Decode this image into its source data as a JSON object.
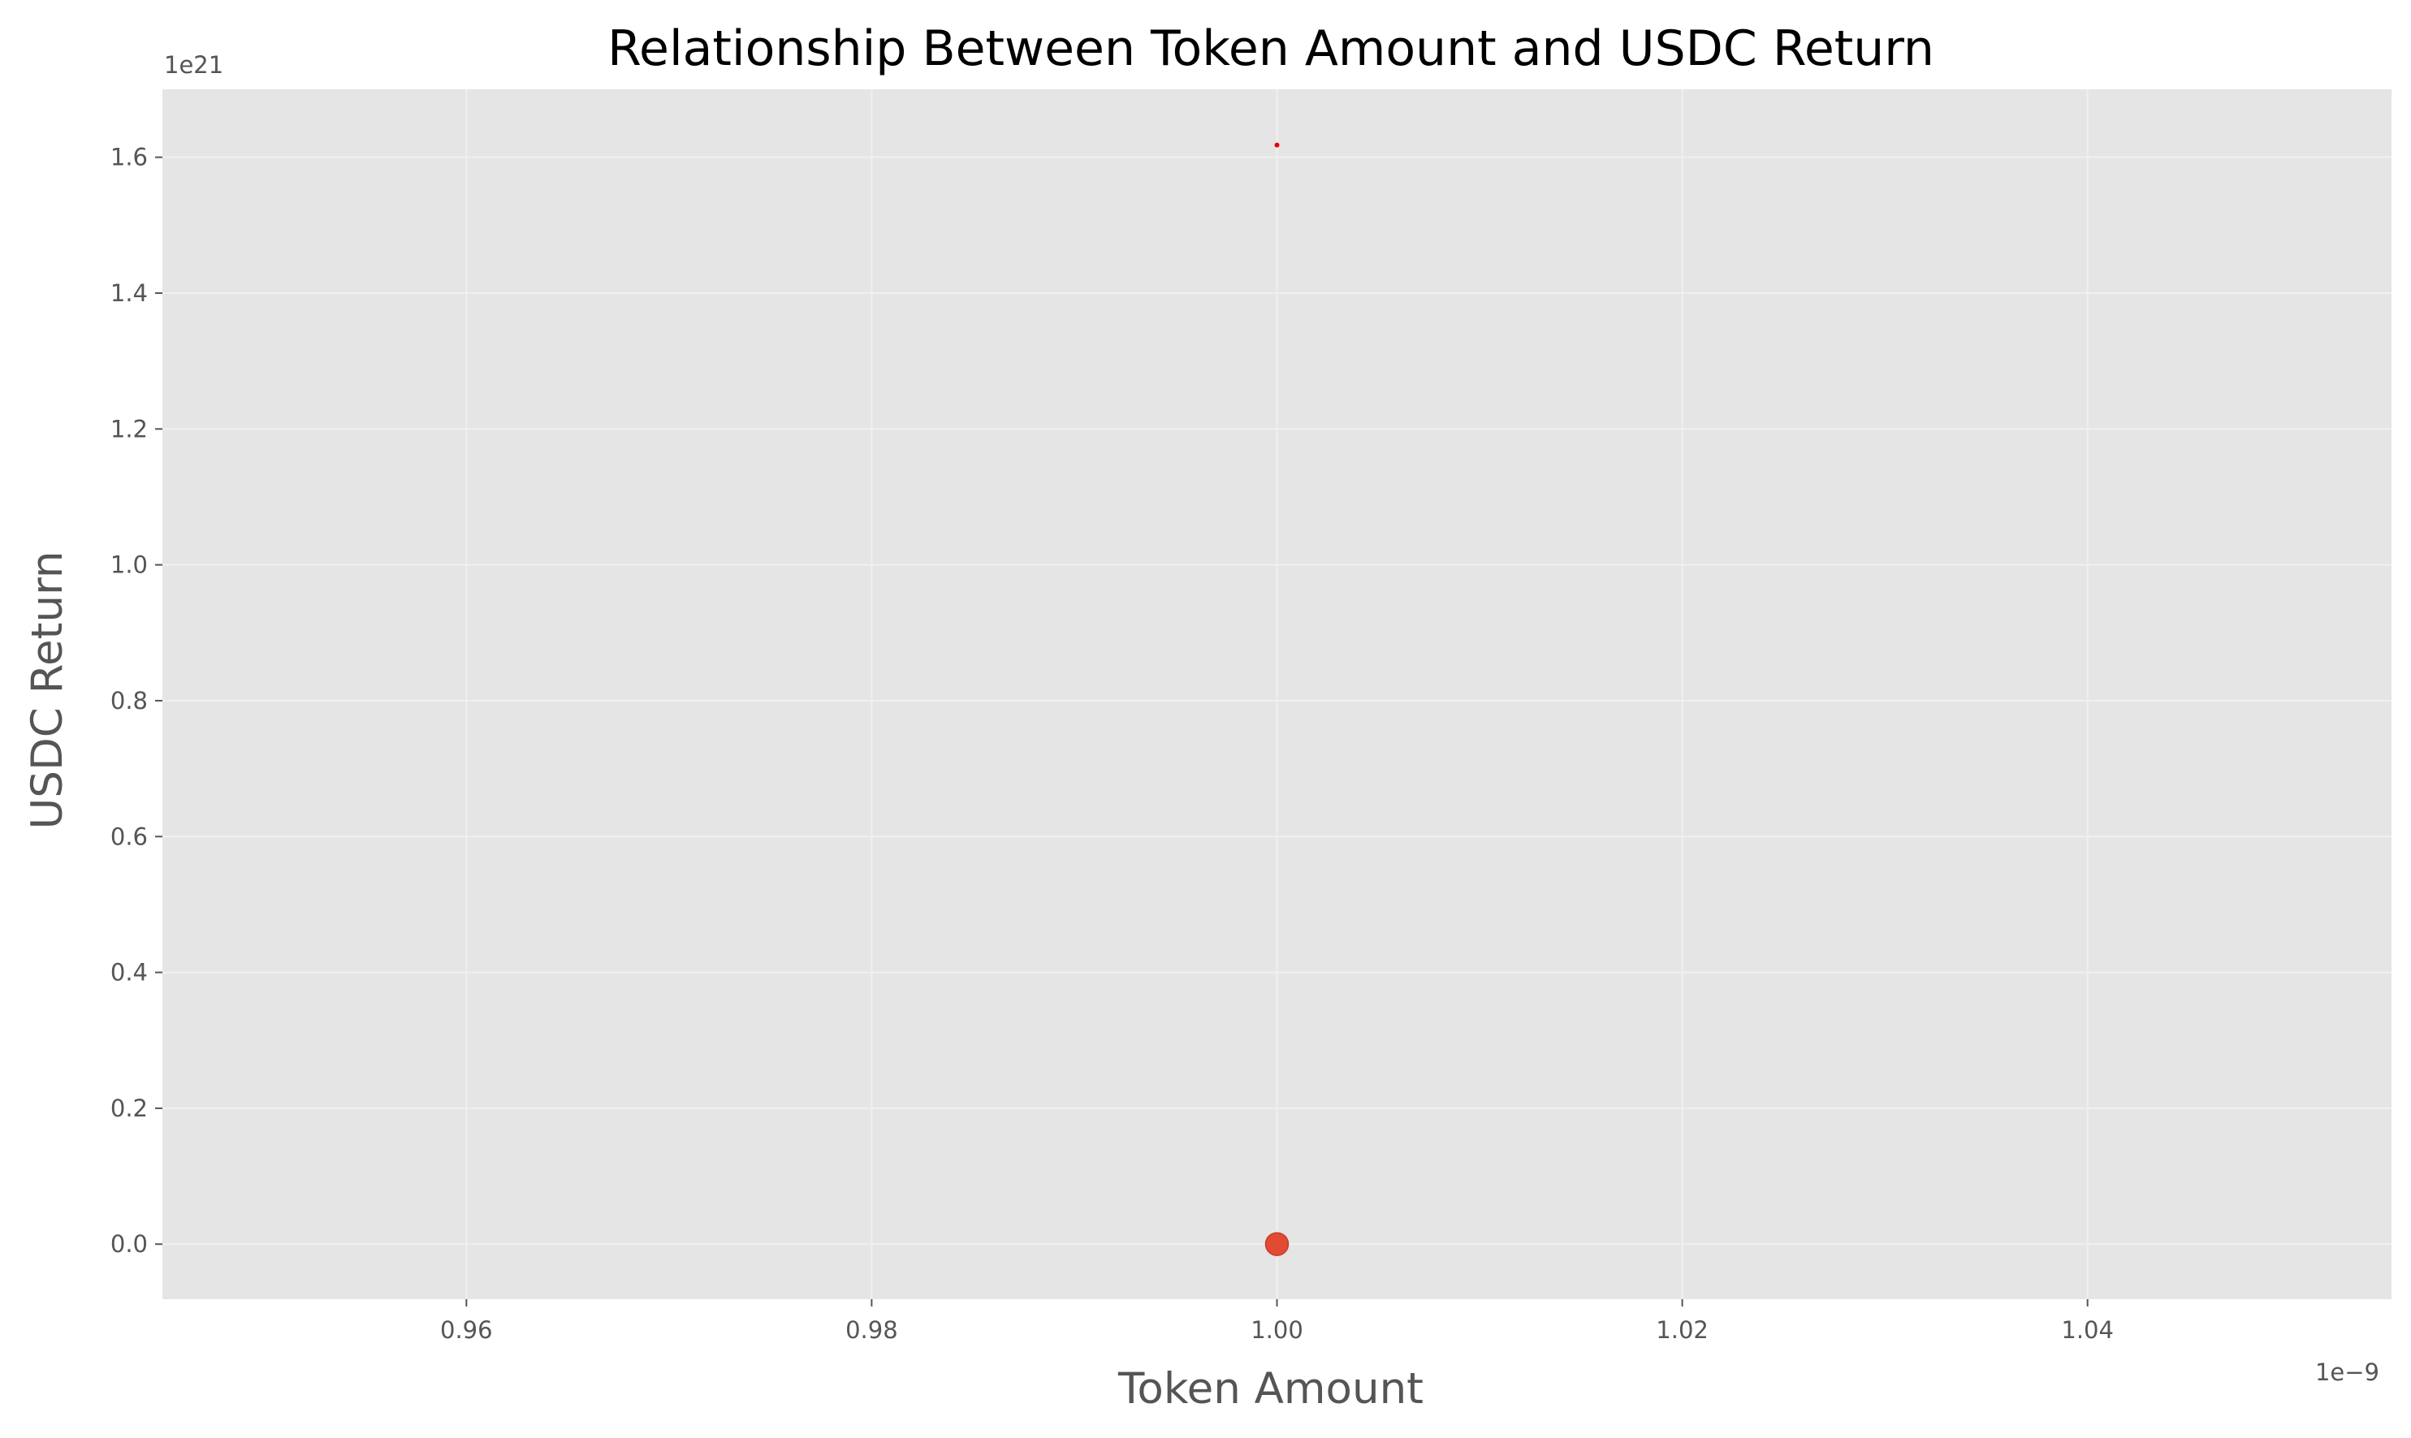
{
  "chart_data": {
    "type": "scatter",
    "title": "Relationship Between Token Amount and USDC Return",
    "xlabel": "Token Amount",
    "ylabel": "USDC Return",
    "x_offset_label": "1e−9",
    "y_offset_label": "1e21",
    "x_ticks": [
      {
        "value": 0.96,
        "label": "0.96"
      },
      {
        "value": 0.98,
        "label": "0.98"
      },
      {
        "value": 1.0,
        "label": "1.00"
      },
      {
        "value": 1.02,
        "label": "1.02"
      },
      {
        "value": 1.04,
        "label": "1.04"
      }
    ],
    "y_ticks": [
      {
        "value": 0.0,
        "label": "0.0"
      },
      {
        "value": 0.2,
        "label": "0.2"
      },
      {
        "value": 0.4,
        "label": "0.4"
      },
      {
        "value": 0.6,
        "label": "0.6"
      },
      {
        "value": 0.8,
        "label": "0.8"
      },
      {
        "value": 1.0,
        "label": "1.0"
      },
      {
        "value": 1.2,
        "label": "1.2"
      },
      {
        "value": 1.4,
        "label": "1.4"
      },
      {
        "value": 1.6,
        "label": "1.6"
      }
    ],
    "xlim": [
      0.945,
      1.055
    ],
    "ylim": [
      -0.081,
      1.7
    ],
    "points": [
      {
        "x": 1.0,
        "y": 0.0,
        "marker": "large"
      },
      {
        "x": 1.0,
        "y": 1.618,
        "marker": "small"
      }
    ],
    "grid": true,
    "colors": {
      "background": "#e5e5e5",
      "grid": "#f0f0f0",
      "large_point": "#e24a33",
      "small_point": "#e8000b"
    }
  }
}
